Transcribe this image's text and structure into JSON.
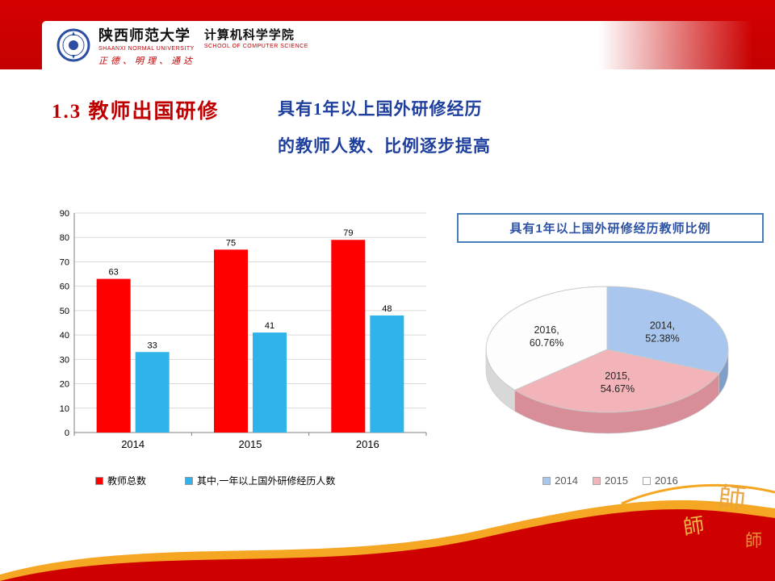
{
  "header": {
    "university_name": "陕西师范大学",
    "school_name": "计算机科学学院",
    "university_name_en": "SHAANXI NORMAL UNIVERSITY",
    "school_name_en": "SCHOOL OF COMPUTER SCIENCE",
    "motto": "正德、明理、通达"
  },
  "slide": {
    "title": "1.3 教师出国研修",
    "subtitle_line1": "具有1年以上国外研修经历",
    "subtitle_line2": "的教师人数、比例逐步提高"
  },
  "chart_data": [
    {
      "type": "bar",
      "title": "",
      "xlabel": "",
      "ylabel": "",
      "categories": [
        "2014",
        "2015",
        "2016"
      ],
      "series": [
        {
          "name": "教师总数",
          "color": "#ff0000",
          "values": [
            63,
            75,
            79
          ]
        },
        {
          "name": "其中,一年以上国外研修经历人数",
          "color": "#2fb3e8",
          "values": [
            33,
            41,
            48
          ]
        }
      ],
      "ylim": [
        0,
        90
      ],
      "ytick_step": 10,
      "grid": true,
      "legend_position": "bottom"
    },
    {
      "type": "pie",
      "title": "具有1年以上国外研修经历教师比例",
      "slices": [
        {
          "name": "2014",
          "value": 52.38,
          "label_lines": [
            "2014,",
            "52.38%"
          ],
          "color": "#a9c7ee",
          "side_color": "#7f9fc9"
        },
        {
          "name": "2015",
          "value": 54.67,
          "label_lines": [
            "2015,",
            "54.67%"
          ],
          "color": "#f2b3b9",
          "side_color": "#d78e98"
        },
        {
          "name": "2016",
          "value": 60.76,
          "label_lines": [
            "2016,",
            "60.76%"
          ],
          "color": "#fdfdfd",
          "side_color": "#d8d8d8"
        }
      ],
      "legend_position": "bottom"
    }
  ],
  "footer": {
    "seal_character": "師"
  },
  "colors": {
    "banner_red": "#c90000",
    "accent_gold": "#f5a623",
    "title_red": "#be0000",
    "subtitle_blue": "#1f3f9e",
    "pie_box_border": "#4a7ebb"
  }
}
